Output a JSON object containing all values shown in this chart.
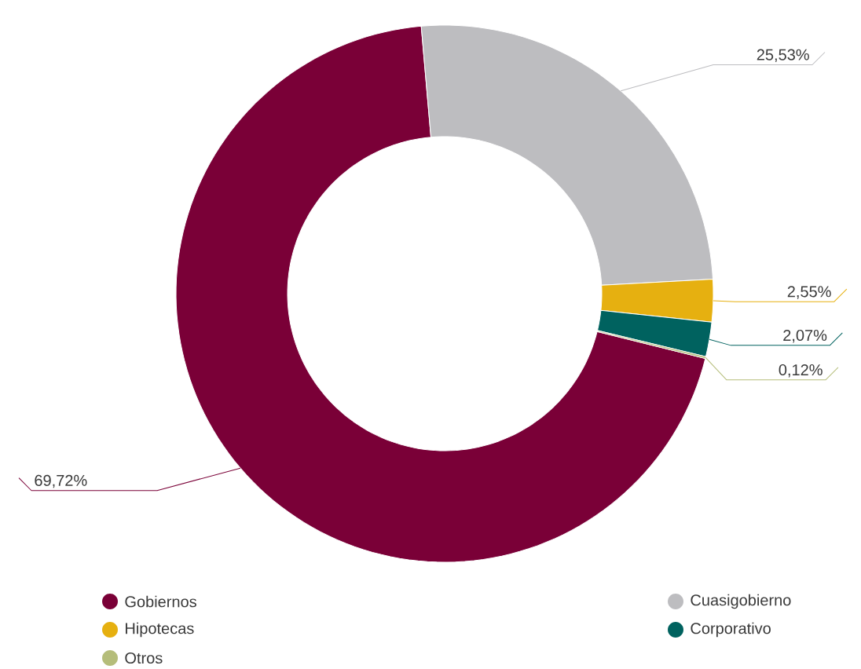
{
  "chart_data": {
    "type": "donut",
    "categories": [
      "Gobiernos",
      "Cuasigobierno",
      "Hipotecas",
      "Corporativo",
      "Otros"
    ],
    "values": [
      69.72,
      25.53,
      2.55,
      2.07,
      0.12
    ],
    "colors": [
      "#7a0037",
      "#bdbdc0",
      "#e6b010",
      "#00625f",
      "#b5bd7a"
    ],
    "value_labels": [
      "69,72%",
      "25,53%",
      "2,55%",
      "2,07%",
      "0,12%"
    ],
    "legend": "bottom"
  }
}
